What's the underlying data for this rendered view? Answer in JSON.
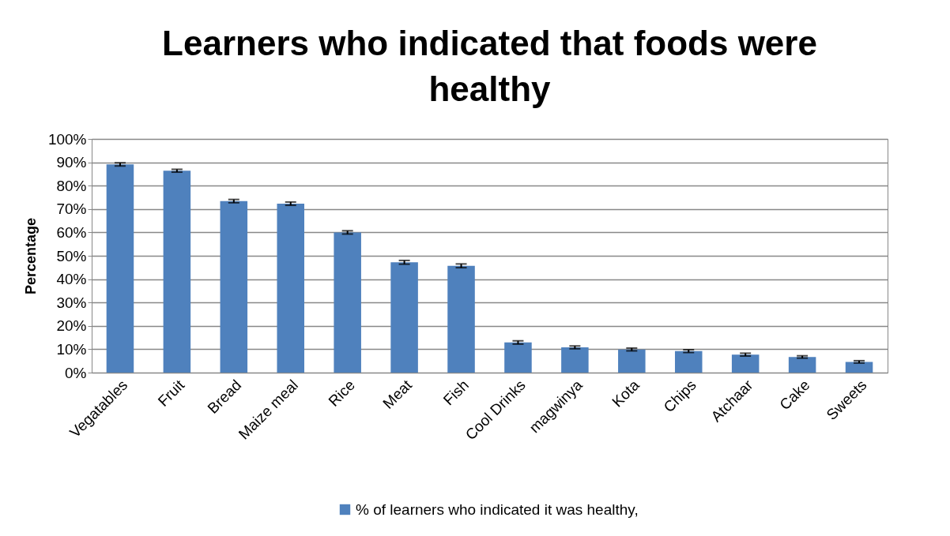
{
  "chart_data": {
    "type": "bar",
    "title": [
      "Learners who indicated that foods were",
      "healthy"
    ],
    "ylabel": "Percentage",
    "categories": [
      "Vegatables",
      "Fruit",
      "Bread",
      "Maize meal",
      "Rice",
      "Meat",
      "Fish",
      "Cool Drinks",
      "magwinya",
      "Kota",
      "Chips",
      "Atchaar",
      "Cake",
      "Sweets"
    ],
    "series": [
      {
        "name": "% of  learners who indicated it was healthy,",
        "color": "#4f81bd",
        "values": [
          89.1,
          86.4,
          73.4,
          72.3,
          60.0,
          47.2,
          45.7,
          12.9,
          10.8,
          9.9,
          9.2,
          7.7,
          6.7,
          4.6
        ],
        "errors": [
          0.7,
          0.6,
          0.7,
          0.7,
          0.7,
          0.8,
          0.8,
          0.7,
          0.6,
          0.6,
          0.6,
          0.6,
          0.5,
          0.5
        ]
      }
    ],
    "ylim": [
      0,
      100
    ],
    "yticks": [
      {
        "value": 0,
        "label": "0%"
      },
      {
        "value": 10,
        "label": "10%"
      },
      {
        "value": 20,
        "label": "20%"
      },
      {
        "value": 30,
        "label": "30%"
      },
      {
        "value": 40,
        "label": "40%"
      },
      {
        "value": 50,
        "label": "50%"
      },
      {
        "value": 60,
        "label": "60%"
      },
      {
        "value": 70,
        "label": "70%"
      },
      {
        "value": 80,
        "label": "80%"
      },
      {
        "value": 90,
        "label": "90%"
      },
      {
        "value": 100,
        "label": "100%"
      }
    ],
    "grid": "y",
    "legend": "bottom"
  }
}
